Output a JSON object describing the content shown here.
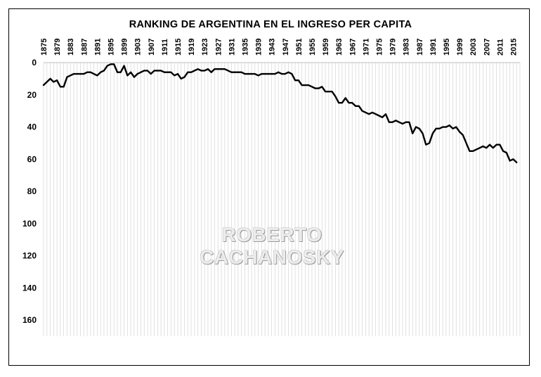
{
  "chart_data": {
    "type": "line",
    "title": "RANKING  DE ARGENTINA  EN EL INGRESO PER CAPITA",
    "watermark": "ROBERTO CACHANOSKY",
    "xlabel": "",
    "ylabel": "",
    "x_tick_labels": [
      "1875",
      "1879",
      "1883",
      "1887",
      "1891",
      "1895",
      "1899",
      "1903",
      "1907",
      "1911",
      "1915",
      "1919",
      "1923",
      "1927",
      "1931",
      "1935",
      "1939",
      "1943",
      "1947",
      "1951",
      "1955",
      "1959",
      "1963",
      "1967",
      "1971",
      "1975",
      "1979",
      "1983",
      "1987",
      "1991",
      "1995",
      "1999",
      "2003",
      "2007",
      "2011",
      "2015"
    ],
    "y_tick_labels": [
      "0",
      "20",
      "40",
      "60",
      "80",
      "100",
      "120",
      "140",
      "160"
    ],
    "xlim": [
      1875,
      2017
    ],
    "ylim": [
      0,
      170
    ],
    "y_inverted": true,
    "grid": "vertical lines at each year",
    "line_color": "#000000",
    "series": [
      {
        "points": [
          [
            1875,
            14
          ],
          [
            1876,
            12
          ],
          [
            1877,
            10
          ],
          [
            1878,
            12
          ],
          [
            1879,
            11
          ],
          [
            1880,
            15
          ],
          [
            1881,
            15
          ],
          [
            1882,
            9
          ],
          [
            1883,
            8
          ],
          [
            1884,
            7
          ],
          [
            1885,
            7
          ],
          [
            1886,
            7
          ],
          [
            1887,
            7
          ],
          [
            1888,
            6
          ],
          [
            1889,
            6
          ],
          [
            1890,
            7
          ],
          [
            1891,
            8
          ],
          [
            1892,
            6
          ],
          [
            1893,
            5
          ],
          [
            1894,
            2
          ],
          [
            1895,
            1
          ],
          [
            1896,
            1
          ],
          [
            1897,
            6
          ],
          [
            1898,
            6
          ],
          [
            1899,
            2
          ],
          [
            1900,
            8
          ],
          [
            1901,
            6
          ],
          [
            1902,
            9
          ],
          [
            1903,
            7
          ],
          [
            1904,
            6
          ],
          [
            1905,
            5
          ],
          [
            1906,
            5
          ],
          [
            1907,
            7
          ],
          [
            1908,
            5
          ],
          [
            1909,
            5
          ],
          [
            1910,
            5
          ],
          [
            1911,
            6
          ],
          [
            1912,
            6
          ],
          [
            1913,
            6
          ],
          [
            1914,
            8
          ],
          [
            1915,
            7
          ],
          [
            1916,
            10
          ],
          [
            1917,
            9
          ],
          [
            1918,
            6
          ],
          [
            1919,
            6
          ],
          [
            1920,
            5
          ],
          [
            1921,
            4
          ],
          [
            1922,
            5
          ],
          [
            1923,
            5
          ],
          [
            1924,
            4
          ],
          [
            1925,
            6
          ],
          [
            1926,
            4
          ],
          [
            1927,
            4
          ],
          [
            1928,
            4
          ],
          [
            1929,
            4
          ],
          [
            1930,
            5
          ],
          [
            1931,
            6
          ],
          [
            1932,
            6
          ],
          [
            1933,
            6
          ],
          [
            1934,
            6
          ],
          [
            1935,
            7
          ],
          [
            1936,
            7
          ],
          [
            1937,
            7
          ],
          [
            1938,
            7
          ],
          [
            1939,
            8
          ],
          [
            1940,
            7
          ],
          [
            1941,
            7
          ],
          [
            1942,
            7
          ],
          [
            1943,
            7
          ],
          [
            1944,
            7
          ],
          [
            1945,
            6
          ],
          [
            1946,
            7
          ],
          [
            1947,
            7
          ],
          [
            1948,
            6
          ],
          [
            1949,
            7
          ],
          [
            1950,
            11
          ],
          [
            1951,
            11
          ],
          [
            1952,
            14
          ],
          [
            1953,
            14
          ],
          [
            1954,
            14
          ],
          [
            1955,
            15
          ],
          [
            1956,
            16
          ],
          [
            1957,
            16
          ],
          [
            1958,
            15
          ],
          [
            1959,
            18
          ],
          [
            1960,
            18
          ],
          [
            1961,
            18
          ],
          [
            1962,
            21
          ],
          [
            1963,
            25
          ],
          [
            1964,
            25
          ],
          [
            1965,
            22
          ],
          [
            1966,
            25
          ],
          [
            1967,
            25
          ],
          [
            1968,
            27
          ],
          [
            1969,
            27
          ],
          [
            1970,
            30
          ],
          [
            1971,
            31
          ],
          [
            1972,
            32
          ],
          [
            1973,
            31
          ],
          [
            1974,
            32
          ],
          [
            1975,
            33
          ],
          [
            1976,
            34
          ],
          [
            1977,
            32
          ],
          [
            1978,
            37
          ],
          [
            1979,
            37
          ],
          [
            1980,
            36
          ],
          [
            1981,
            37
          ],
          [
            1982,
            38
          ],
          [
            1983,
            37
          ],
          [
            1984,
            37
          ],
          [
            1985,
            44
          ],
          [
            1986,
            40
          ],
          [
            1987,
            41
          ],
          [
            1988,
            44
          ],
          [
            1989,
            51
          ],
          [
            1990,
            50
          ],
          [
            1991,
            44
          ],
          [
            1992,
            41
          ],
          [
            1993,
            41
          ],
          [
            1994,
            40
          ],
          [
            1995,
            40
          ],
          [
            1996,
            39
          ],
          [
            1997,
            41
          ],
          [
            1998,
            40
          ],
          [
            1999,
            43
          ],
          [
            2000,
            45
          ],
          [
            2001,
            50
          ],
          [
            2002,
            55
          ],
          [
            2003,
            55
          ],
          [
            2004,
            54
          ],
          [
            2005,
            53
          ],
          [
            2006,
            52
          ],
          [
            2007,
            53
          ],
          [
            2008,
            51
          ],
          [
            2009,
            53
          ],
          [
            2010,
            51
          ],
          [
            2011,
            51
          ],
          [
            2012,
            55
          ],
          [
            2013,
            56
          ],
          [
            2014,
            61
          ],
          [
            2015,
            60
          ],
          [
            2016,
            62
          ]
        ]
      }
    ]
  }
}
